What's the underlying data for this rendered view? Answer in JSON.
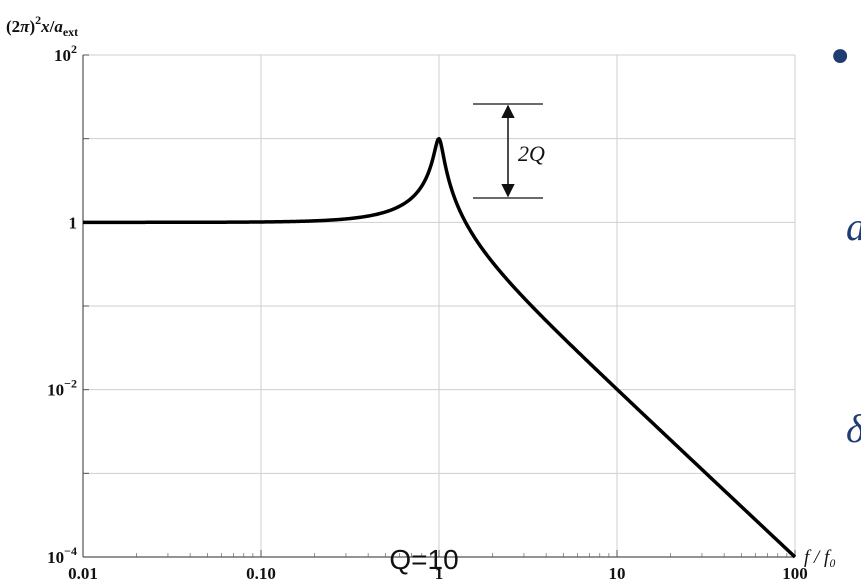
{
  "chart_data": {
    "type": "line",
    "x_scale": "log",
    "y_scale": "log",
    "xlim": [
      0.01,
      100
    ],
    "ylim": [
      0.0001,
      100
    ],
    "x_ticks": [
      "0.01",
      "0.10",
      "1",
      "10",
      "100"
    ],
    "y_ticks": [
      {
        "base": "10",
        "exp": "−4",
        "value": 0.0001
      },
      {
        "base": "10",
        "exp": "−2",
        "value": 0.01
      },
      {
        "base": "1",
        "exp": "",
        "value": 1
      },
      {
        "base": "10",
        "exp": "2",
        "value": 100
      }
    ],
    "ylabel": {
      "pre": "(2",
      "pi": "π",
      "close": ")",
      "sup": "2",
      "x": "x",
      "slash": "/",
      "a": "a",
      "sub": "ext"
    },
    "xlabel": "f / f₀",
    "grid": true,
    "series": [
      {
        "model": "driven harmonic oscillator amplitude",
        "Q": 10,
        "x": [
          0.01,
          0.03,
          0.1,
          0.3,
          0.5,
          0.7,
          0.8,
          0.9,
          0.95,
          1,
          1.05,
          1.1,
          1.2,
          1.5,
          2,
          3,
          5,
          10,
          30,
          100
        ],
        "y": [
          1.0,
          1.0,
          1.01,
          1.1,
          1.33,
          1.95,
          2.7,
          4.9,
          7.3,
          10,
          7.2,
          4.6,
          2.2,
          0.79,
          0.33,
          0.125,
          0.042,
          0.0101,
          0.00111,
          0.0001
        ]
      }
    ],
    "annotation": {
      "label": "2Q"
    },
    "caption": "Q=10"
  },
  "side_glyphs": {
    "bullet": "•",
    "glyph1": "a",
    "glyph2": "δ"
  }
}
